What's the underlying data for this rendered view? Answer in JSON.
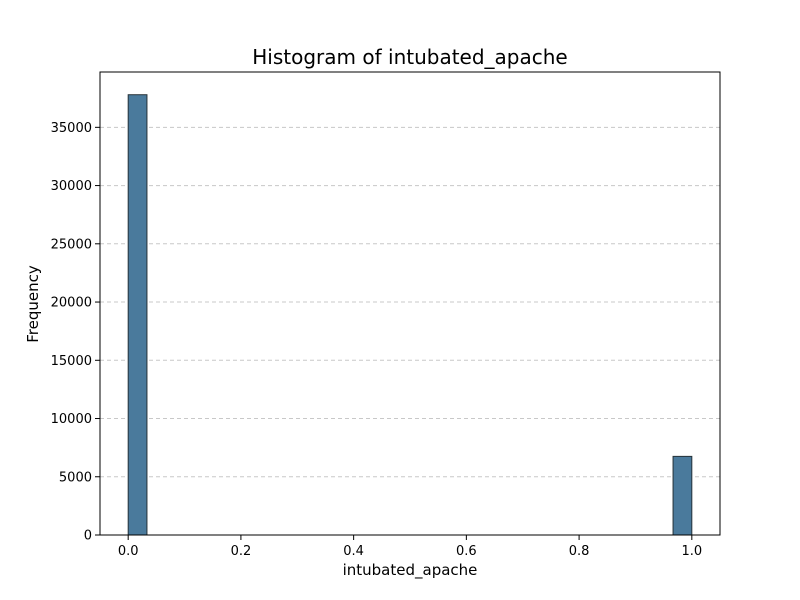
{
  "chart_data": {
    "type": "bar",
    "title": "Histogram of intubated_apache",
    "xlabel": "intubated_apache",
    "ylabel": "Frequency",
    "xlim": [
      -0.05,
      1.05
    ],
    "ylim": [
      0,
      39750
    ],
    "xticks": [
      0.0,
      0.2,
      0.4,
      0.6,
      0.8,
      1.0
    ],
    "xtick_labels": [
      "0.0",
      "0.2",
      "0.4",
      "0.6",
      "0.8",
      "1.0"
    ],
    "yticks": [
      0,
      5000,
      10000,
      15000,
      20000,
      25000,
      30000,
      35000
    ],
    "ytick_labels": [
      "0",
      "5000",
      "10000",
      "15000",
      "20000",
      "25000",
      "30000",
      "35000"
    ],
    "grid": {
      "axis": "y",
      "style": "dashed"
    },
    "bins": 30,
    "bars": [
      {
        "x0": 0.0,
        "x1": 0.0333,
        "value": 37800
      },
      {
        "x0": 0.9667,
        "x1": 1.0,
        "value": 6750
      }
    ],
    "colors": {
      "bar_fill": "#4a7a9c",
      "bar_edge": "#263238",
      "grid": "#c8c8c8",
      "axis": "#000000"
    }
  }
}
